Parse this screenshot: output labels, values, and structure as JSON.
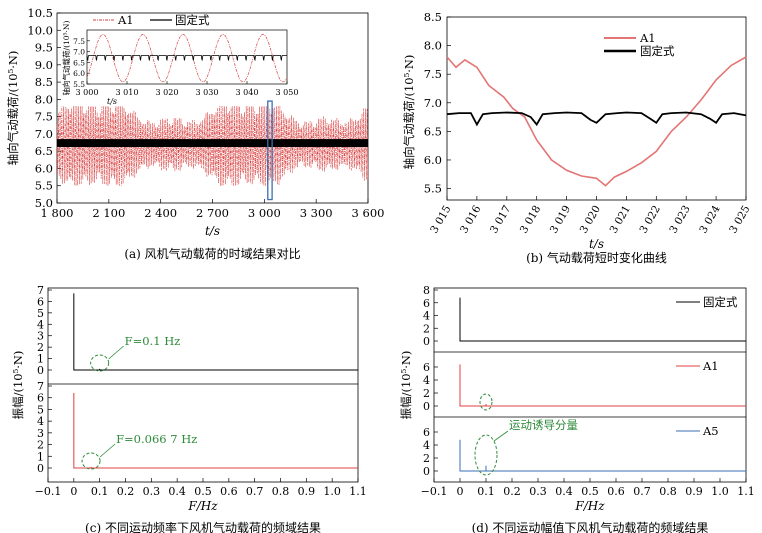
{
  "chart_data": [
    {
      "id": "a",
      "type": "line",
      "caption": "(a) 风机气动载荷的时域结果对比",
      "xlabel": "t/s",
      "ylabel": "轴向气动载荷/(10⁵·N)",
      "xlim": [
        1800,
        3600
      ],
      "ylim": [
        5.0,
        10.5
      ],
      "xticks": [
        1800,
        2100,
        2400,
        2700,
        3000,
        3300,
        3600
      ],
      "xtick_labels": [
        "1 800",
        "2 100",
        "2 400",
        "2 700",
        "3 000",
        "3 300",
        "3 600"
      ],
      "yticks": [
        5.0,
        5.5,
        6.0,
        6.5,
        7.0,
        7.5,
        8.0,
        8.5,
        9.0,
        9.5,
        10.0,
        10.5
      ],
      "ytick_labels": [
        "5.0",
        "5.5",
        "6.0",
        "6.5",
        "7.0",
        "7.5",
        "8.0",
        "8.5",
        "9.0",
        "9.5",
        "10.0",
        "10.5"
      ],
      "series": [
        {
          "name": "A1",
          "color": "#d94040",
          "style": "dash-dot",
          "mean": 6.7,
          "amplitude_range": [
            5.5,
            7.8
          ],
          "period_s": 10
        },
        {
          "name": "固定式",
          "color": "#000000",
          "style": "solid",
          "band": [
            6.62,
            6.85
          ]
        }
      ],
      "highlight_box": {
        "x": [
          3020,
          3045
        ],
        "y": [
          5.1,
          7.95
        ],
        "color": "#3a6fb3"
      },
      "inset": {
        "xlabel": "t/s",
        "ylabel": "轴向气动载荷/(10⁵·N)",
        "xlim": [
          3000,
          3050
        ],
        "ylim": [
          5.5,
          8.0
        ],
        "xticks": [
          3000,
          3010,
          3020,
          3030,
          3040,
          3050
        ],
        "xtick_labels": [
          "3 000",
          "3 010",
          "3 020",
          "3 030",
          "3 040",
          "3 050"
        ],
        "yticks": [
          5.5,
          6.0,
          6.5,
          7.0,
          7.5
        ],
        "ytick_labels": [
          "5.5",
          "6.0",
          "6.5",
          "7.0",
          "7.5"
        ]
      }
    },
    {
      "id": "b",
      "type": "line",
      "caption": "(b) 气动载荷短时变化曲线",
      "xlabel": "t/s",
      "ylabel": "轴向气动载荷/(10⁵·N)",
      "xlim": [
        3015,
        3025
      ],
      "ylim": [
        5.3,
        8.5
      ],
      "xticks": [
        3015,
        3016,
        3017,
        3018,
        3019,
        3020,
        3021,
        3022,
        3023,
        3024,
        3025
      ],
      "xtick_labels": [
        "3 015",
        "3 016",
        "3 017",
        "3 018",
        "3 019",
        "3 020",
        "3 021",
        "3 022",
        "3 023",
        "3 024",
        "3 025"
      ],
      "yticks": [
        5.5,
        6.0,
        6.5,
        7.0,
        7.5,
        8.0,
        8.5
      ],
      "ytick_labels": [
        "5.5",
        "6.0",
        "6.5",
        "7.0",
        "7.5",
        "8.0",
        "8.5"
      ],
      "series": [
        {
          "name": "A1",
          "color": "#e37575",
          "x": [
            3015,
            3015.3,
            3015.6,
            3016,
            3016.4,
            3016.9,
            3017.2,
            3017.6,
            3018,
            3018.5,
            3019,
            3019.5,
            3020,
            3020.3,
            3020.6,
            3021,
            3021.5,
            3022,
            3022.5,
            3023,
            3023.5,
            3024,
            3024.5,
            3025
          ],
          "y": [
            7.8,
            7.62,
            7.75,
            7.62,
            7.3,
            7.1,
            6.9,
            6.75,
            6.35,
            6.0,
            5.82,
            5.72,
            5.68,
            5.55,
            5.7,
            5.8,
            5.95,
            6.15,
            6.5,
            6.75,
            7.05,
            7.4,
            7.65,
            7.8
          ]
        },
        {
          "name": "固定式",
          "color": "#000000",
          "x": [
            3015,
            3015.4,
            3015.8,
            3016,
            3016.2,
            3016.5,
            3017,
            3017.5,
            3017.8,
            3018,
            3018.2,
            3018.6,
            3019,
            3019.5,
            3019.8,
            3020,
            3020.3,
            3020.7,
            3021,
            3021.5,
            3021.8,
            3022,
            3022.2,
            3022.5,
            3023,
            3023.5,
            3023.8,
            3024,
            3024.2,
            3024.6,
            3025
          ],
          "y": [
            6.8,
            6.82,
            6.82,
            6.62,
            6.8,
            6.82,
            6.83,
            6.82,
            6.75,
            6.62,
            6.8,
            6.82,
            6.83,
            6.82,
            6.7,
            6.65,
            6.8,
            6.82,
            6.83,
            6.82,
            6.72,
            6.65,
            6.8,
            6.82,
            6.83,
            6.8,
            6.72,
            6.65,
            6.8,
            6.82,
            6.78
          ]
        }
      ]
    },
    {
      "id": "c",
      "type": "line",
      "caption": "(c) 不同运动频率下风机气动载荷的频域结果",
      "xlabel": "F/Hz",
      "ylabel": "振幅/(10⁵·N)",
      "xlim": [
        -0.1,
        1.1
      ],
      "xticks": [
        -0.1,
        0.0,
        0.1,
        0.2,
        0.3,
        0.4,
        0.5,
        0.6,
        0.7,
        0.8,
        0.9,
        1.0,
        1.1
      ],
      "xtick_labels": [
        "−0.1",
        "0",
        "0.1",
        "0.2",
        "0.3",
        "0.4",
        "0.5",
        "0.6",
        "0.7",
        "0.8",
        "0.9",
        "1.0",
        "1.1"
      ],
      "panels": [
        {
          "series_name": "upper",
          "color": "#000000",
          "ylim": [
            0,
            7
          ],
          "yticks": [
            0,
            1,
            2,
            3,
            4,
            5,
            6,
            7
          ],
          "ytick_labels": [
            "0",
            "1",
            "2",
            "3",
            "4",
            "5",
            "6",
            "7"
          ],
          "dc_peak": 6.7,
          "motion_peak": {
            "f": 0.1,
            "amp": 0.1
          },
          "annotation": {
            "text": "F=0.1 Hz",
            "f": 0.1
          }
        },
        {
          "series_name": "lower",
          "color": "#e04040",
          "ylim": [
            0,
            7
          ],
          "yticks": [
            0,
            1,
            2,
            3,
            4,
            5,
            6,
            7
          ],
          "ytick_labels": [
            "0",
            "1",
            "2",
            "3",
            "4",
            "5",
            "6",
            "7"
          ],
          "dc_peak": 6.4,
          "motion_peak": {
            "f": 0.0667,
            "amp": 0.1
          },
          "annotation": {
            "text": "F=0.066 7 Hz",
            "f": 0.0667
          }
        }
      ]
    },
    {
      "id": "d",
      "type": "line",
      "caption": "(d) 不同运动幅值下风机气动载荷的频域结果",
      "xlabel": "F/Hz",
      "ylabel": "振幅/(10⁵·N)",
      "xlim": [
        -0.1,
        1.1
      ],
      "xticks": [
        -0.1,
        0.0,
        0.1,
        0.2,
        0.3,
        0.4,
        0.5,
        0.6,
        0.7,
        0.8,
        0.9,
        1.0,
        1.1
      ],
      "xtick_labels": [
        "−0.1",
        "0",
        "0.1",
        "0.2",
        "0.3",
        "0.4",
        "0.5",
        "0.6",
        "0.7",
        "0.8",
        "0.9",
        "1.0",
        "1.1"
      ],
      "panels": [
        {
          "series_name": "固定式",
          "color": "#000000",
          "ylim": [
            0,
            8
          ],
          "yticks": [
            0,
            2,
            4,
            6,
            8
          ],
          "ytick_labels": [
            "0",
            "2",
            "4",
            "6",
            "8"
          ],
          "dc_peak": 6.8,
          "motion_peak": null
        },
        {
          "series_name": "A1",
          "color": "#e04040",
          "ylim": [
            0,
            8
          ],
          "yticks": [
            0,
            2,
            4,
            6
          ],
          "ytick_labels": [
            "0",
            "2",
            "4",
            "6"
          ],
          "dc_peak": 6.4,
          "motion_peak": {
            "f": 0.1,
            "amp": 0.3
          }
        },
        {
          "series_name": "A5",
          "color": "#3a6fb3",
          "ylim": [
            0,
            8
          ],
          "yticks": [
            0,
            2,
            4,
            6
          ],
          "ytick_labels": [
            "0",
            "2",
            "4",
            "6"
          ],
          "dc_peak": 4.8,
          "motion_peak": {
            "f": 0.1,
            "amp": 0.8
          }
        }
      ],
      "annotation": {
        "text": "运动诱导分量",
        "f": 0.1
      }
    }
  ]
}
